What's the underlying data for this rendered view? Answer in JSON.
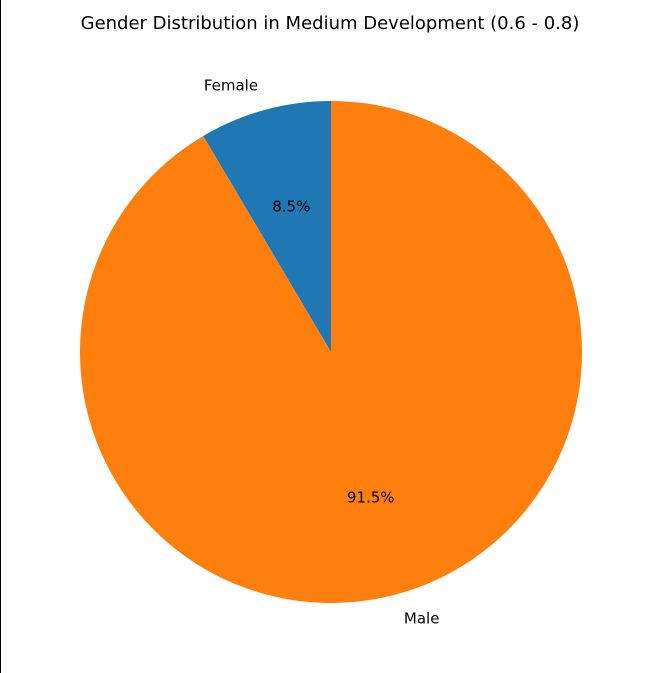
{
  "chart_data": {
    "type": "pie",
    "title": "Gender Distribution in Medium Development (0.6 - 0.8)",
    "slices": [
      {
        "label": "Female",
        "percent_label": "8.5%",
        "value": 8.5,
        "color": "#1f77b4"
      },
      {
        "label": "Male",
        "percent_label": "91.5%",
        "value": 91.5,
        "color": "#ff7f0e"
      }
    ],
    "start_angle": 90,
    "direction": "counterclockwise",
    "legend": "none"
  }
}
